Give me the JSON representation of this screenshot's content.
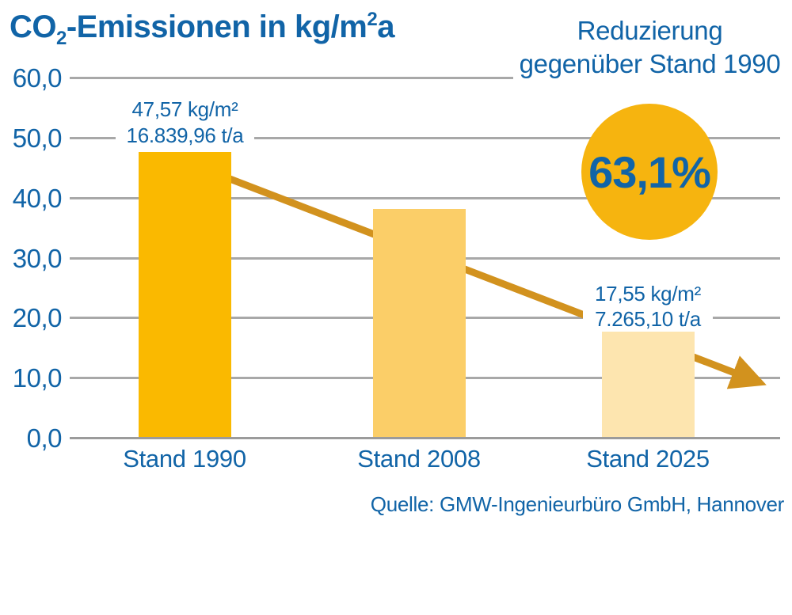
{
  "title": {
    "prefix": "CO",
    "subscript": "2",
    "middle": "-Emissionen in kg/m",
    "superscript": "2",
    "suffix": "a"
  },
  "header_right": {
    "line1": "Reduzierung",
    "line2": "gegenüber Stand 1990"
  },
  "badge": {
    "value": "63,1%"
  },
  "axis": {
    "ticks": [
      "60,0",
      "50,0",
      "40,0",
      "30,0",
      "20,0",
      "10,0",
      "0,0"
    ]
  },
  "bars": {
    "bar1": {
      "label": "Stand 1990",
      "value_line1": "47,57 kg/m²",
      "value_line2": "16.839,96 t/a"
    },
    "bar2": {
      "label": "Stand 2008"
    },
    "bar3": {
      "label": "Stand 2025",
      "value_line1": "17,55 kg/m²",
      "value_line2": "7.265,10 t/a"
    }
  },
  "source": "Quelle: GMW-Ingenieurbüro GmbH, Hannover",
  "colors": {
    "text_blue": "#1164A7",
    "bar_1990": "#FAB900",
    "bar_2008": "#FBCE68",
    "bar_2025": "#FDE5AF",
    "badge_circle": "#F6B40F",
    "arrow": "#D2921E",
    "gridline": "#A8A8A8"
  },
  "chart_data": {
    "type": "bar",
    "title": "CO₂-Emissionen in kg/m²a",
    "categories": [
      "Stand 1990",
      "Stand 2008",
      "Stand 2025"
    ],
    "values": [
      47.57,
      38.0,
      17.55
    ],
    "value_labels": [
      {
        "kg_per_m2a": "47,57 kg/m²",
        "tons_per_a": "16.839,96 t/a"
      },
      null,
      {
        "kg_per_m2a": "17,55 kg/m²",
        "tons_per_a": "7.265,10 t/a"
      }
    ],
    "ylabel": "kg/m²a",
    "ylim": [
      0,
      60
    ],
    "yticks": [
      0,
      10,
      20,
      30,
      40,
      50,
      60
    ],
    "grid": true,
    "annotations": {
      "reduction_caption": "Reduzierung gegenüber Stand 1990",
      "reduction_value": "63,1%",
      "trend_arrow": "downward from Stand 1990 toward right"
    },
    "source": "Quelle: GMW-Ingenieurbüro GmbH, Hannover"
  }
}
